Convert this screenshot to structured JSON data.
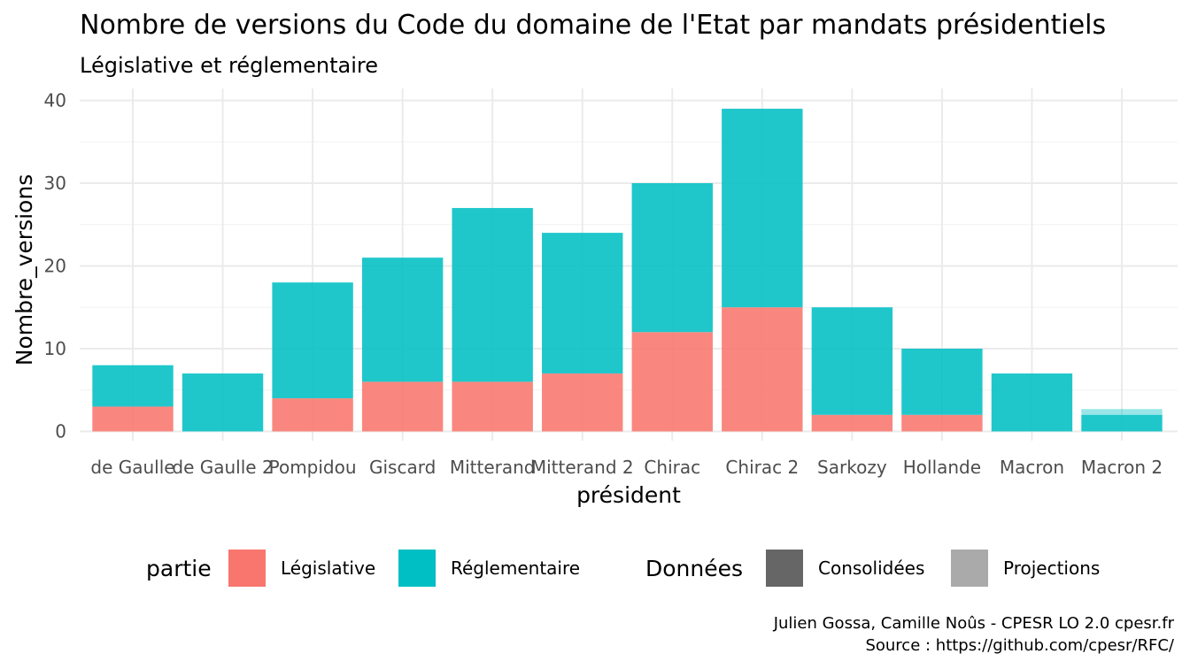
{
  "chart_data": {
    "type": "bar",
    "stacked": true,
    "title": "Nombre de versions du Code du domaine de l'Etat par mandats présidentiels",
    "subtitle": "Législative et réglementaire",
    "xlabel": "président",
    "ylabel": "Nombre_versions",
    "ylim": [
      0,
      40
    ],
    "yticks": [
      0,
      10,
      20,
      30,
      40
    ],
    "grid": true,
    "legend_position": "bottom",
    "categories": [
      "de Gaulle",
      "de Gaulle 2",
      "Pompidou",
      "Giscard",
      "Mitterand",
      "Mitterand 2",
      "Chirac",
      "Chirac 2",
      "Sarkozy",
      "Hollande",
      "Macron",
      "Macron 2"
    ],
    "series": [
      {
        "name": "Législative",
        "color": "#f8766d",
        "values": [
          3,
          0,
          4,
          6,
          6,
          7,
          12,
          15,
          2,
          2,
          0,
          0
        ]
      },
      {
        "name": "Réglementaire",
        "color": "#00bfc4",
        "values": [
          5,
          7,
          14,
          15,
          21,
          17,
          18,
          24,
          13,
          8,
          7,
          2
        ]
      }
    ],
    "projections": {
      "category": "Macron 2",
      "series": "Réglementaire",
      "value": 0.7
    },
    "legend": {
      "partie": {
        "title": "partie",
        "items": [
          {
            "label": "Législative",
            "color": "#f8766d"
          },
          {
            "label": "Réglementaire",
            "color": "#00bfc4"
          }
        ]
      },
      "donnees": {
        "title": "Données",
        "items": [
          {
            "label": "Consolidées",
            "color": "#666666"
          },
          {
            "label": "Projections",
            "color": "#aaaaaa"
          }
        ]
      }
    },
    "caption": [
      "Julien Gossa, Camille Noûs - CPESR LO 2.0 cpesr.fr",
      "Source : https://github.com/cpesr/RFC/"
    ]
  }
}
